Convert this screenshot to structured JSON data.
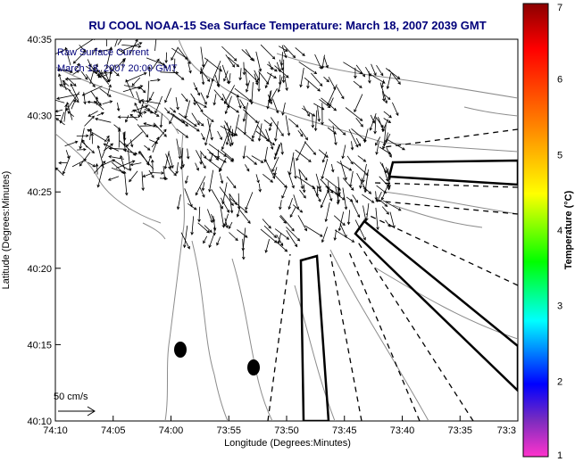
{
  "title": "RU COOL  NOAA-15  Sea Surface Temperature:  March 18, 2007 2039 GMT",
  "annotation": {
    "line1": "Raw Surface Current",
    "line2": "March 18, 2007 20:00 GMT"
  },
  "scale": {
    "label": "50 cm/s"
  },
  "axes": {
    "xlabel": "Longitude (Degrees:Minutes)",
    "ylabel": "Latitude (Degrees:Minutes)",
    "xticks": [
      "74:10",
      "74:05",
      "74:00",
      "73:55",
      "73:50",
      "73:45",
      "73:40",
      "73:35",
      "73:3"
    ],
    "yticks": [
      "40:35",
      "40:30",
      "40:25",
      "40:20",
      "40:15",
      "40:10"
    ]
  },
  "colorbar": {
    "label": "Temperature (°C)",
    "ticks": [
      "7",
      "6",
      "5",
      "4",
      "3",
      "2",
      "1"
    ],
    "colors": [
      "#8b0000",
      "#ff0000",
      "#ff8c00",
      "#ffff00",
      "#00ff00",
      "#00ffff",
      "#0000ff",
      "#7b2cbf",
      "#ff33cc"
    ]
  },
  "colors": {
    "title": "#00007a",
    "contour": "#8c8c8c",
    "vectors": "#000000"
  }
}
